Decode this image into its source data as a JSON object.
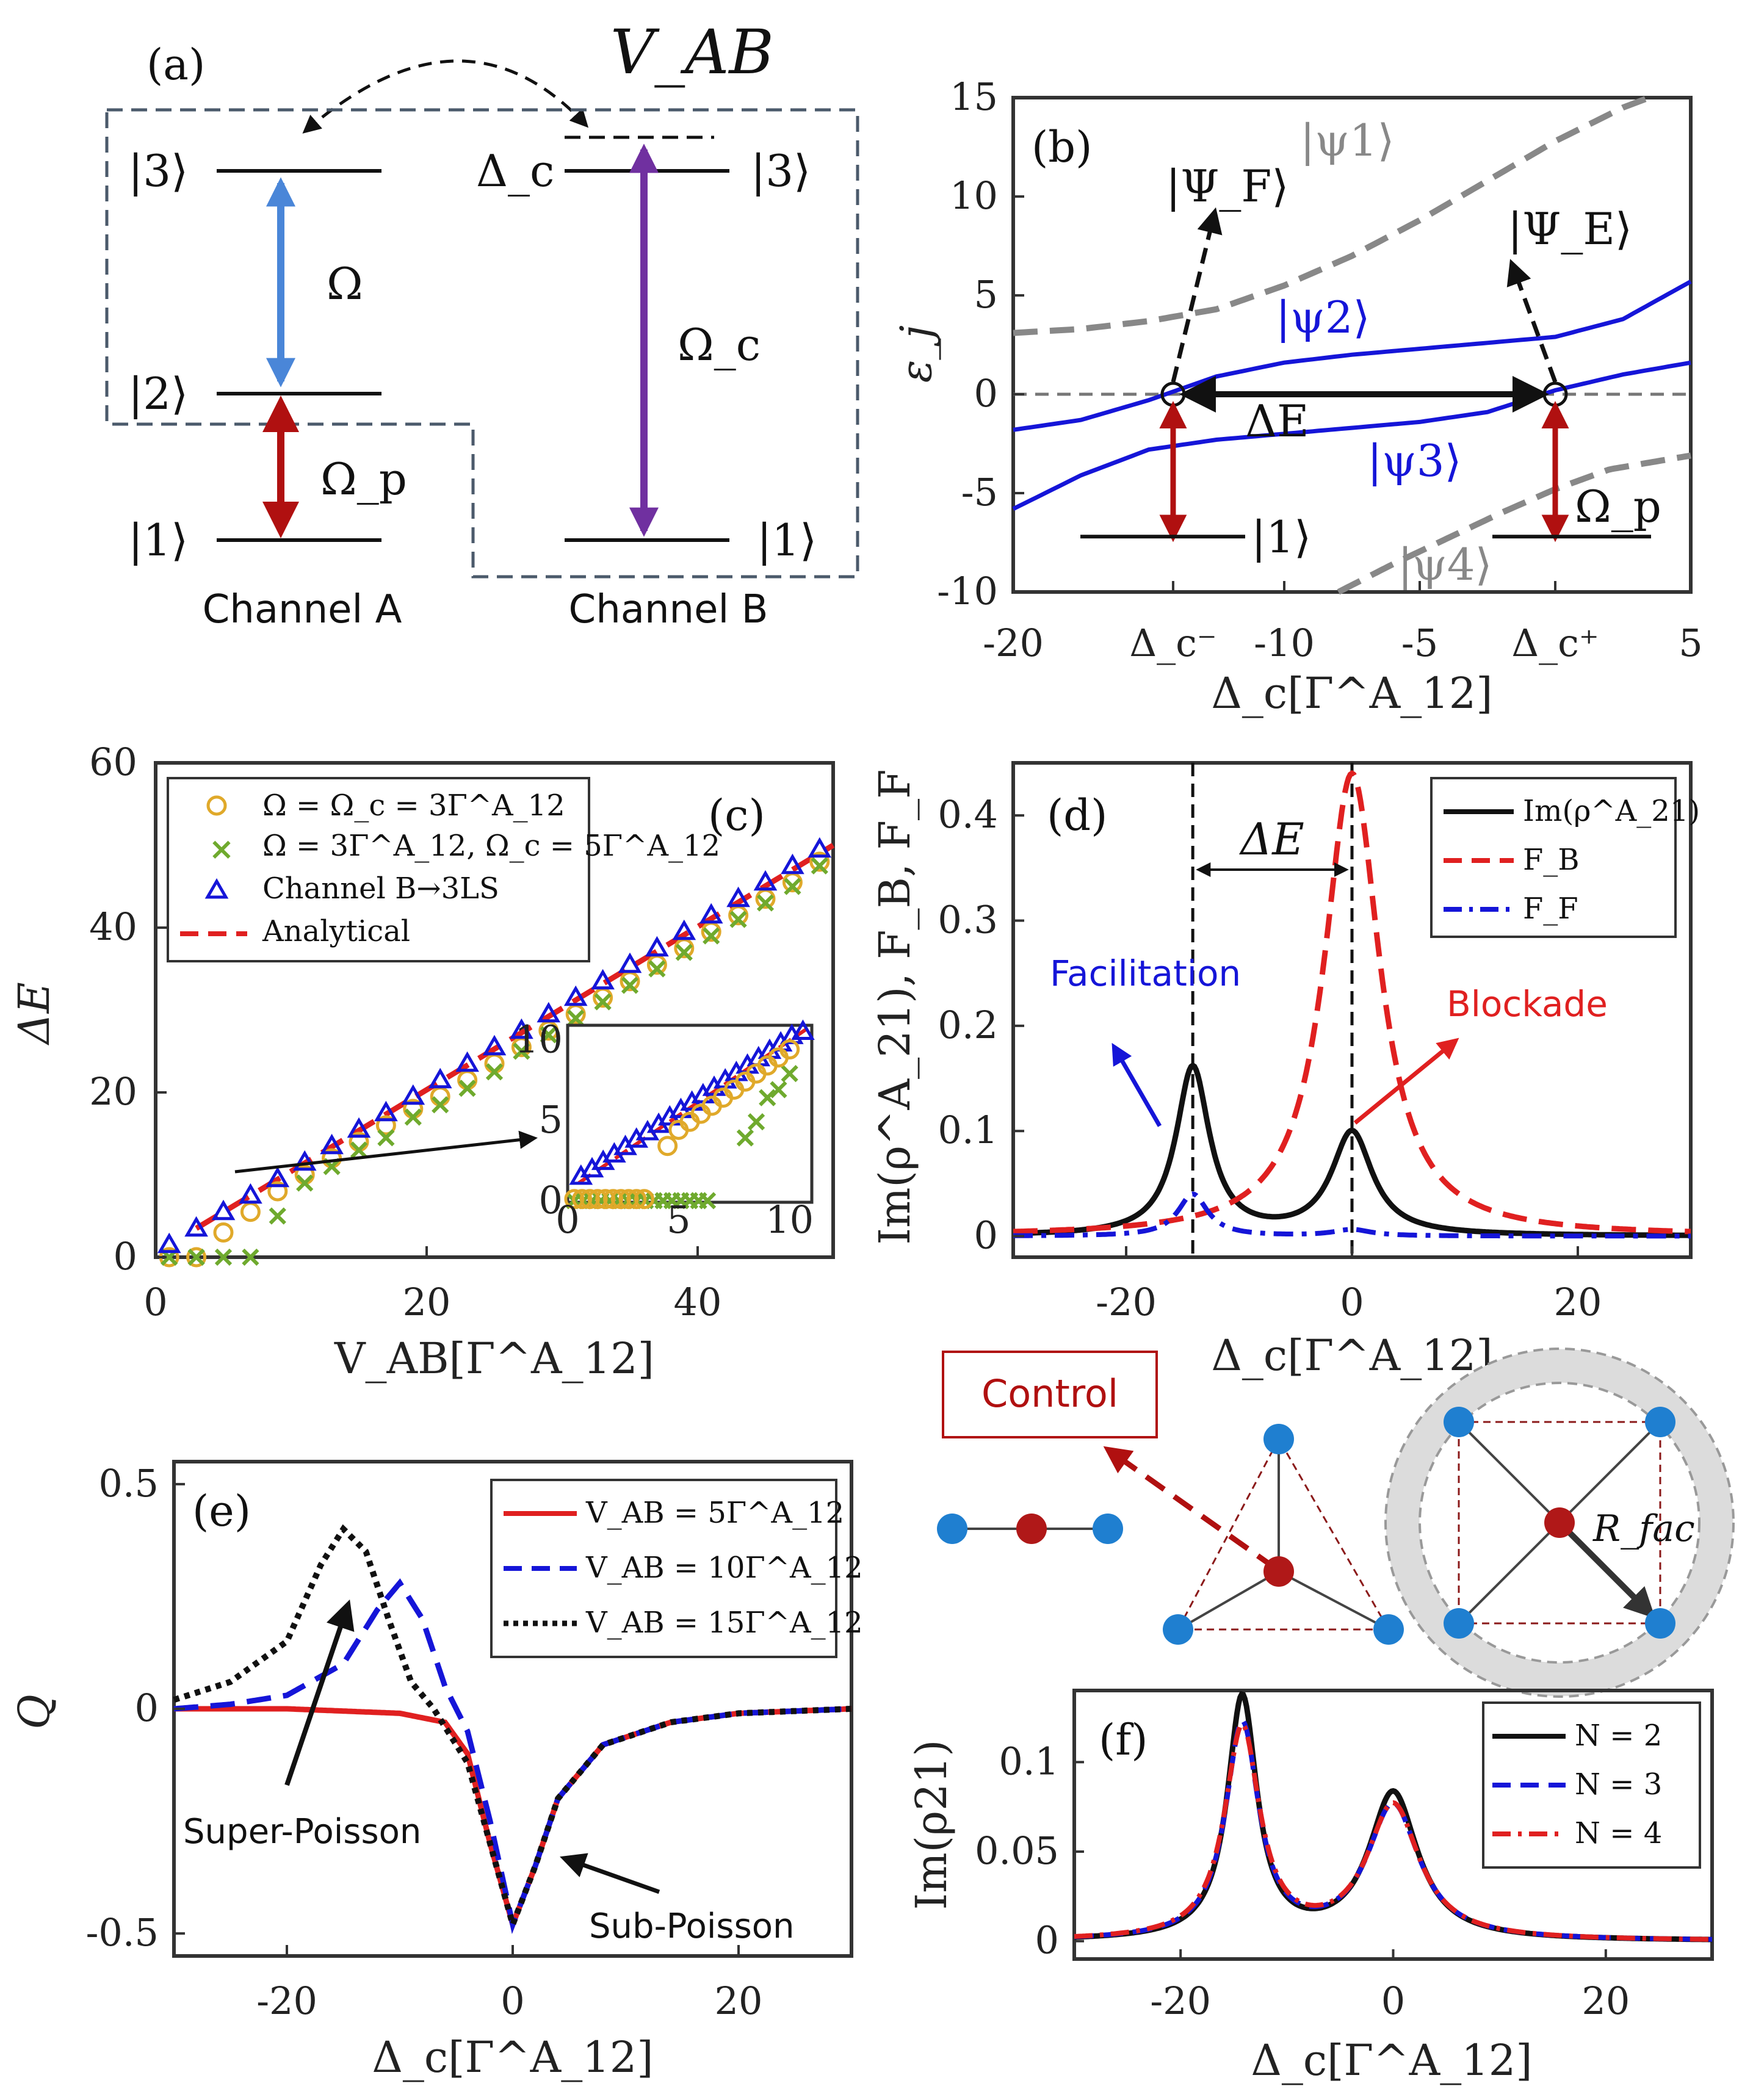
{
  "panels": {
    "a": {
      "label": "(a)",
      "coupling": "V_AB",
      "levelsA": [
        "|3⟩",
        "|2⟩",
        "|1⟩"
      ],
      "levelsB": [
        "|3⟩",
        "|1⟩"
      ],
      "detuning": "Δ_c",
      "omega": "Ω",
      "omega_p": "Ω_p",
      "omega_c": "Ω_c",
      "channelA": "Channel A",
      "channelB": "Channel B"
    },
    "b": {
      "label": "(b)",
      "ylabel": "ε_j",
      "xlabel": "Δ_c[Γ^A_12]",
      "xticks": [
        "-20",
        "Δ_c⁻",
        "-10",
        "-5",
        "Δ_c⁺",
        "5"
      ],
      "yticks": [
        "15",
        "10",
        "5",
        "0",
        "-5",
        "-10"
      ],
      "states": [
        "|ψ1⟩",
        "|ψ2⟩",
        "|ψ3⟩",
        "|ψ4⟩",
        "|Ψ_F⟩",
        "|Ψ_E⟩",
        "|1⟩"
      ],
      "deltaE": "ΔE",
      "omega_p": "Ω_p"
    },
    "c": {
      "label": "(c)",
      "ylabel": "ΔE",
      "xlabel": "V_AB[Γ^A_12]",
      "xticks": [
        "0",
        "20",
        "40"
      ],
      "yticks": [
        "60",
        "40",
        "20",
        "0"
      ],
      "inset_xticks": [
        "0",
        "5",
        "10"
      ],
      "inset_yticks": [
        "10",
        "5",
        "0"
      ],
      "legend": [
        "Ω = Ω_c = 3Γ^A_12",
        "Ω = 3Γ^A_12, Ω_c = 5Γ^A_12",
        "Channel B→3LS",
        "Analytical"
      ]
    },
    "d": {
      "label": "(d)",
      "ylabel": "Im(ρ^A_21), F_B, F_F",
      "xlabel": "Δ_c[Γ^A_12]",
      "xticks": [
        "-20",
        "0",
        "20"
      ],
      "yticks": [
        "0.4",
        "0.3",
        "0.2",
        "0.1",
        "0"
      ],
      "legend": [
        "Im(ρ^A_21)",
        "F_B",
        "F_F"
      ],
      "deltaE": "ΔE",
      "facilitation": "Facilitation",
      "blockade": "Blockade"
    },
    "mid": {
      "control": "Control",
      "rfac": "R_fac"
    },
    "e": {
      "label": "(e)",
      "ylabel": "Q",
      "xlabel": "Δ_c[Γ^A_12]",
      "xticks": [
        "-20",
        "0",
        "20"
      ],
      "yticks": [
        "0.5",
        "0",
        "-0.5"
      ],
      "legend": [
        "V_AB = 5Γ^A_12",
        "V_AB = 10Γ^A_12",
        "V_AB = 15Γ^A_12"
      ],
      "super": "Super-Poisson",
      "sub": "Sub-Poisson"
    },
    "f": {
      "label": "(f)",
      "ylabel": "Im(ρ21)",
      "xlabel": "Δ_c[Γ^A_12]",
      "xticks": [
        "-20",
        "0",
        "20"
      ],
      "yticks": [
        "0.1",
        "0.05",
        "0"
      ],
      "legend": [
        "N = 2",
        "N = 3",
        "N = 4"
      ]
    }
  },
  "colors": {
    "blue": "#1515d8",
    "red": "#e02020",
    "gold": "#e0a92a",
    "green": "#6faa2e",
    "purple": "#7030a0",
    "lightblue": "#4a86d8",
    "darkred": "#b01010",
    "gray": "#888888",
    "node_blue": "#1f7fd0",
    "node_red": "#b01818"
  },
  "chart_data": [
    {
      "panel": "b",
      "type": "line",
      "xlim": [
        -20,
        5
      ],
      "ylim": [
        -10,
        15
      ],
      "series": [
        {
          "name": "ψ1",
          "x": [
            -20,
            -17.5,
            -15,
            -12.5,
            -10,
            -7.5,
            -5,
            -2.5,
            0,
            2.5,
            5
          ],
          "y": [
            3.1,
            3.3,
            3.7,
            4.3,
            5.5,
            7,
            8.8,
            10.8,
            12.8,
            14.5,
            15.8
          ]
        },
        {
          "name": "ψ2",
          "x": [
            -20,
            -17.5,
            -15,
            -12.5,
            -10,
            -7.5,
            -5,
            -2.5,
            0,
            2.5,
            5
          ],
          "y": [
            -1.8,
            -1.3,
            -0.3,
            0.9,
            1.6,
            2,
            2.3,
            2.6,
            2.9,
            3.8,
            5.7
          ]
        },
        {
          "name": "ψ3",
          "x": [
            -20,
            -17.5,
            -15,
            -12.5,
            -10,
            -7.5,
            -5,
            -2.5,
            0,
            2.5,
            5
          ],
          "y": [
            -5.8,
            -4.1,
            -2.8,
            -2.3,
            -2,
            -1.7,
            -1.4,
            -0.9,
            0.2,
            1,
            1.6
          ]
        },
        {
          "name": "ψ4",
          "x": [
            -8,
            -6,
            -4,
            -2,
            0,
            2,
            5
          ],
          "y": [
            -10,
            -8.6,
            -7.3,
            -6,
            -4.8,
            -3.8,
            -3.1
          ]
        }
      ]
    },
    {
      "panel": "c",
      "type": "scatter",
      "xlim": [
        0,
        50
      ],
      "ylim": [
        0,
        60
      ],
      "series": [
        {
          "name": "Ω = Ω_c = 3Γ^A_12",
          "x": [
            1,
            3,
            5,
            7,
            9,
            11,
            13,
            15,
            17,
            19,
            21,
            23,
            25,
            27,
            29,
            31,
            33,
            35,
            37,
            39,
            41,
            43,
            45,
            47,
            49
          ],
          "y": [
            0,
            0,
            3,
            5.5,
            8,
            10,
            12,
            14,
            16,
            18,
            19.5,
            21.5,
            23.5,
            25.5,
            27.5,
            29.5,
            31.5,
            33.5,
            35.5,
            37.5,
            39.5,
            41.5,
            43.5,
            45.5,
            48
          ]
        },
        {
          "name": "Ω = 3Γ^A_12, Ω_c = 5Γ^A_12",
          "x": [
            1,
            3,
            5,
            7,
            9,
            11,
            13,
            15,
            17,
            19,
            21,
            23,
            25,
            27,
            29,
            31,
            33,
            35,
            37,
            39,
            41,
            43,
            45,
            47,
            49
          ],
          "y": [
            0,
            0,
            0,
            0,
            5,
            9,
            11,
            13,
            14.5,
            17,
            18.5,
            20.5,
            22.5,
            25,
            27,
            29,
            31,
            33,
            35,
            37,
            39,
            41,
            43,
            45,
            47.5
          ]
        },
        {
          "name": "Channel B→3LS",
          "x": [
            1,
            3,
            5,
            7,
            9,
            11,
            13,
            15,
            17,
            19,
            21,
            23,
            25,
            27,
            29,
            31,
            33,
            35,
            37,
            39,
            41,
            43,
            45,
            47,
            49
          ],
          "y": [
            1.5,
            3.5,
            5.5,
            7.5,
            9.5,
            11.5,
            13.5,
            15.5,
            17.5,
            19.5,
            21.5,
            23.5,
            25.5,
            27.5,
            29.5,
            31.5,
            33.5,
            35.5,
            37.5,
            39.5,
            41.5,
            43.5,
            45.5,
            47.5,
            49.5
          ]
        },
        {
          "name": "Analytical",
          "x": [
            3,
            50
          ],
          "y": [
            3.5,
            50
          ]
        }
      ]
    },
    {
      "panel": "d",
      "type": "line",
      "xlim": [
        -30,
        30
      ],
      "ylim": [
        -0.02,
        0.45
      ],
      "peaks": {
        "Im_rho21_A": [
          {
            "x0": -14.1,
            "amp": 0.16,
            "w": 1.8
          },
          {
            "x0": 0,
            "amp": 0.098,
            "w": 2.2
          }
        ],
        "F_B": [
          {
            "x0": 0,
            "amp": 0.44,
            "w": 3.0
          }
        ],
        "F_F": [
          {
            "x0": -14.1,
            "amp": 0.04,
            "w": 1.6
          },
          {
            "x0": 0,
            "amp": 0.006,
            "w": 2
          }
        ]
      }
    },
    {
      "panel": "e",
      "type": "line",
      "xlim": [
        -30,
        30
      ],
      "ylim": [
        -0.55,
        0.55
      ],
      "series": [
        {
          "name": "V_AB = 5Γ^A_12",
          "x": [
            -30,
            -20,
            -10,
            -6,
            -4,
            -2,
            0,
            2,
            4,
            8,
            14,
            20,
            30
          ],
          "y": [
            0,
            0,
            -0.01,
            -0.03,
            -0.1,
            -0.3,
            -0.48,
            -0.35,
            -0.2,
            -0.08,
            -0.03,
            -0.01,
            0
          ]
        },
        {
          "name": "V_AB = 10Γ^A_12",
          "x": [
            -30,
            -25,
            -20,
            -15,
            -12,
            -10,
            -8,
            -6,
            -4,
            -2,
            0,
            2,
            4,
            8,
            14,
            20,
            30
          ],
          "y": [
            0,
            0.01,
            0.03,
            0.1,
            0.22,
            0.28,
            0.2,
            0.05,
            -0.05,
            -0.25,
            -0.48,
            -0.35,
            -0.2,
            -0.08,
            -0.03,
            -0.01,
            0
          ]
        },
        {
          "name": "V_AB = 15Γ^A_12",
          "x": [
            -30,
            -25,
            -20,
            -17,
            -15,
            -13,
            -11,
            -9,
            -7,
            -4,
            -2,
            0,
            2,
            4,
            8,
            14,
            20,
            30
          ],
          "y": [
            0.02,
            0.06,
            0.15,
            0.32,
            0.4,
            0.35,
            0.2,
            0.06,
            0,
            -0.12,
            -0.3,
            -0.48,
            -0.35,
            -0.2,
            -0.08,
            -0.03,
            -0.01,
            0
          ]
        }
      ]
    },
    {
      "panel": "f",
      "type": "line",
      "xlim": [
        -30,
        30
      ],
      "ylim": [
        -0.01,
        0.14
      ],
      "peaks": {
        "N = 2": [
          {
            "x0": -14.2,
            "amp": 0.135,
            "w": 1.7
          },
          {
            "x0": 0,
            "amp": 0.082,
            "w": 2.8
          }
        ],
        "N = 3": [
          {
            "x0": -14.2,
            "amp": 0.12,
            "w": 1.9
          },
          {
            "x0": 0,
            "amp": 0.075,
            "w": 3.0
          }
        ],
        "N = 4": [
          {
            "x0": -14.2,
            "amp": 0.118,
            "w": 2.0
          },
          {
            "x0": 0,
            "amp": 0.075,
            "w": 3.0
          }
        ]
      }
    }
  ]
}
